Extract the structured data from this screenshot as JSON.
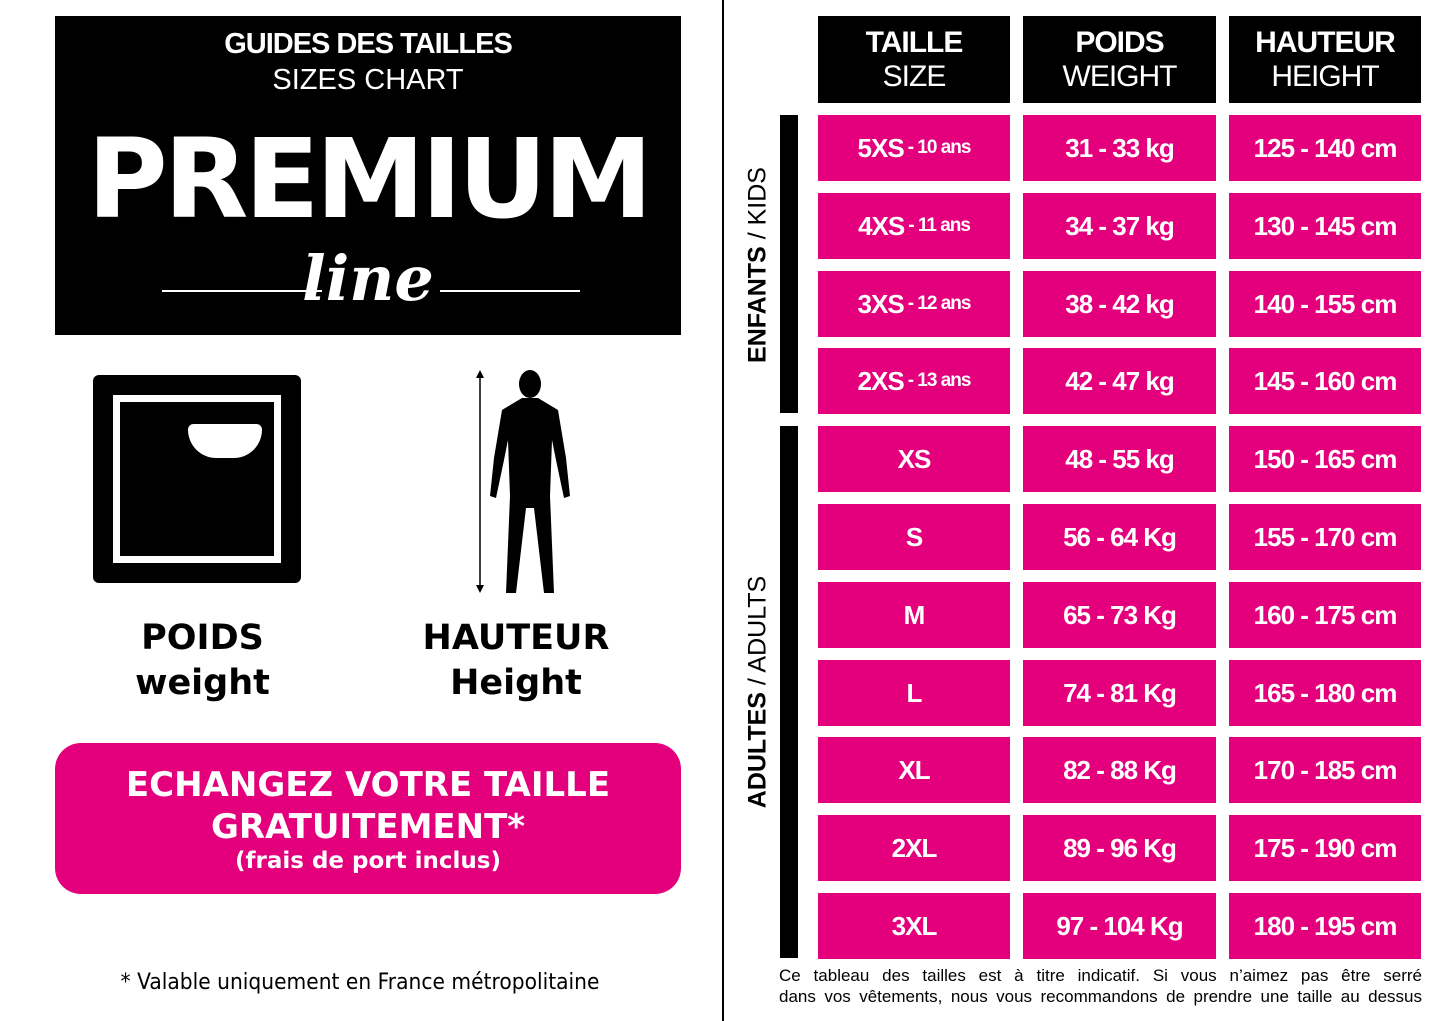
{
  "header": {
    "title": "GUIDES DES TAILLES",
    "subtitle": "SIZES CHART",
    "logo_main": "PREMIUM",
    "logo_sub": "line"
  },
  "icons": {
    "weight": "scale-icon",
    "height": "human-figure-icon"
  },
  "labels": {
    "weight_fr": "POIDS",
    "weight_en": "weight",
    "height_fr": "HAUTEUR",
    "height_en": "Height"
  },
  "cta": {
    "line1": "ECHANGEZ VOTRE TAILLE",
    "line2": "GRATUITEMENT*",
    "line3": "(frais de port inclus)"
  },
  "footnote": "* Valable uniquement en France métropolitaine",
  "colors": {
    "accent": "#e4007c",
    "dark": "#000000"
  },
  "table": {
    "headers": [
      {
        "fr": "TAILLE",
        "en": "SIZE"
      },
      {
        "fr": "POIDS",
        "en": "WEIGHT"
      },
      {
        "fr": "HAUTEUR",
        "en": "HEIGHT"
      }
    ],
    "groups": [
      {
        "bold": "ENFANTS",
        "rest": " / KIDS"
      },
      {
        "bold": "ADULTES",
        "rest": " / ADULTS"
      }
    ],
    "rows": [
      {
        "size": "5XS",
        "age": "- 10 ans",
        "weight": "31 - 33 kg",
        "height": "125 - 140 cm"
      },
      {
        "size": "4XS",
        "age": "- 11 ans",
        "weight": "34 - 37 kg",
        "height": "130 - 145 cm"
      },
      {
        "size": "3XS",
        "age": "- 12 ans",
        "weight": "38 - 42 kg",
        "height": "140 - 155 cm"
      },
      {
        "size": "2XS",
        "age": "- 13 ans",
        "weight": "42 - 47 kg",
        "height": "145 - 160 cm"
      },
      {
        "size": "XS",
        "weight": "48 - 55 kg",
        "height": "150 - 165 cm"
      },
      {
        "size": "S",
        "weight": "56 - 64 Kg",
        "height": "155 - 170 cm"
      },
      {
        "size": "M",
        "weight": "65 - 73 Kg",
        "height": "160 - 175 cm"
      },
      {
        "size": "L",
        "weight": "74 - 81 Kg",
        "height": "165 - 180 cm"
      },
      {
        "size": "XL",
        "weight": "82 - 88 Kg",
        "height": "170 - 185 cm"
      },
      {
        "size": "2XL",
        "weight": "89 - 96 Kg",
        "height": "175 - 190 cm"
      },
      {
        "size": "3XL",
        "weight": "97 - 104 Kg",
        "height": "180 - 195 cm"
      }
    ],
    "note_line1": "Ce tableau des tailles est à titre indicatif. Si vous n’aimez pas être serré",
    "note_line2": "dans vos vêtements, nous vous recommandons de prendre une taille au dessus"
  }
}
